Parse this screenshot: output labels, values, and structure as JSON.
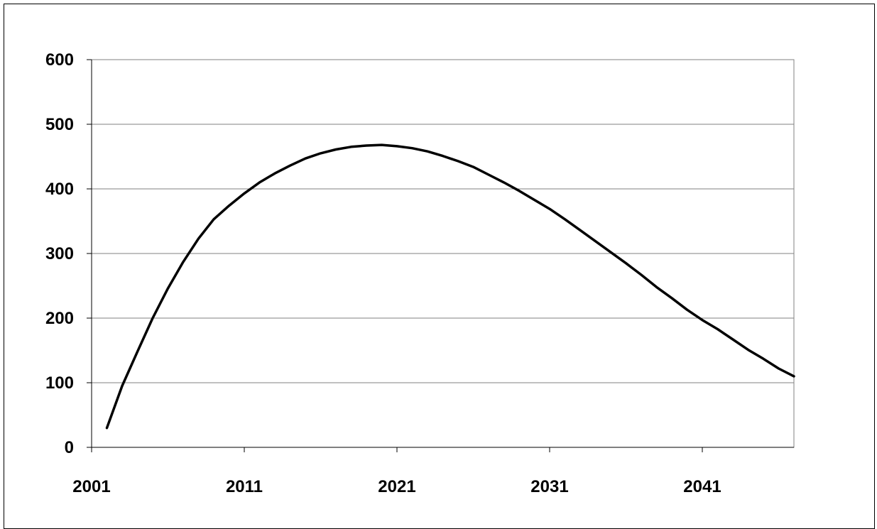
{
  "chart_data": {
    "type": "line",
    "title": "",
    "xlabel": "",
    "ylabel": "",
    "xlim": [
      2001,
      2047
    ],
    "ylim": [
      0,
      600
    ],
    "grid": "horizontal",
    "legend": "none",
    "x_ticks": [
      2001,
      2011,
      2021,
      2031,
      2041
    ],
    "y_ticks": [
      0,
      100,
      200,
      300,
      400,
      500,
      600
    ],
    "series": [
      {
        "color": "#000000",
        "x": [
          2002,
          2003,
          2004,
          2005,
          2006,
          2007,
          2008,
          2009,
          2010,
          2011,
          2012,
          2013,
          2014,
          2015,
          2016,
          2017,
          2018,
          2019,
          2020,
          2021,
          2022,
          2023,
          2024,
          2025,
          2026,
          2027,
          2028,
          2029,
          2030,
          2031,
          2032,
          2033,
          2034,
          2035,
          2036,
          2037,
          2038,
          2039,
          2040,
          2041,
          2042,
          2043,
          2044,
          2045,
          2046,
          2047
        ],
        "y": [
          30,
          95,
          148,
          200,
          246,
          287,
          323,
          353,
          374,
          393,
          410,
          424,
          436,
          447,
          455,
          461,
          465,
          467,
          468,
          466,
          463,
          458,
          451,
          443,
          434,
          422,
          410,
          397,
          383,
          369,
          353,
          336,
          319,
          302,
          285,
          267,
          248,
          231,
          213,
          197,
          183,
          167,
          151,
          137,
          122,
          110
        ]
      }
    ]
  }
}
